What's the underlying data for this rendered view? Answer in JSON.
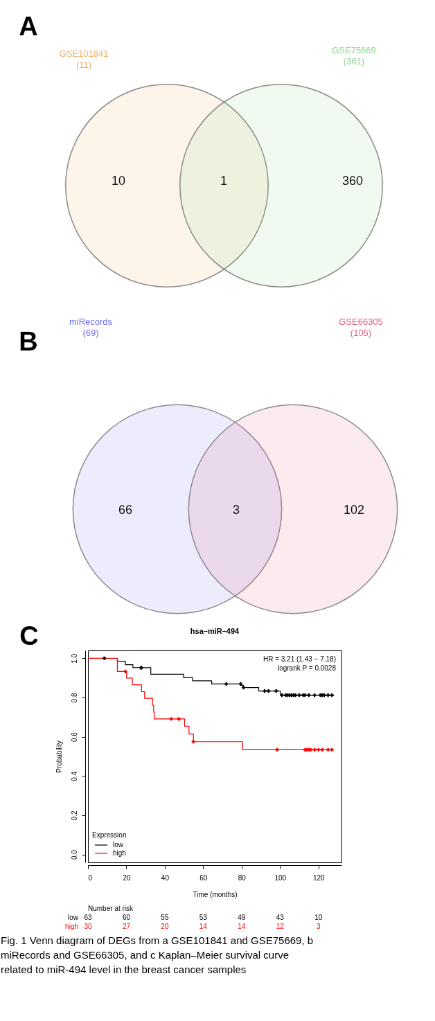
{
  "chart_data": [
    {
      "type": "other",
      "title": "A",
      "categories": [
        "GSE101841",
        "GSE75669"
      ],
      "colors": [
        "#f0b060",
        "#8ed88e"
      ],
      "annotations": [
        "(11)",
        "(361)",
        "10",
        "1",
        "360"
      ]
    },
    {
      "type": "other",
      "title": "B",
      "categories": [
        "miRecords",
        "GSE66305"
      ],
      "colors": [
        "#6f6ff0",
        "#e0607f"
      ],
      "annotations": [
        "(69)",
        "(105)",
        "66",
        "3",
        "102"
      ]
    },
    {
      "type": "line",
      "title": "hsa–miR–494",
      "xlabel": "Time (months)",
      "ylabel": "Probability",
      "legend_title": "Expression",
      "legend": "bottom left",
      "grid": false,
      "xlim": [
        0,
        132
      ],
      "xticks": [
        0,
        20,
        40,
        60,
        80,
        100,
        120
      ],
      "ylim": [
        -0.04,
        1.04
      ],
      "yticks": [
        {
          "value": 0,
          "label": "0.0"
        },
        {
          "value": 0.2,
          "label": "0.2"
        },
        {
          "value": 0.4,
          "label": "0.4"
        },
        {
          "value": 0.6,
          "label": "0.6"
        },
        {
          "value": 0.8,
          "label": "0.8"
        },
        {
          "value": 1,
          "label": "1.0"
        }
      ],
      "series": [
        {
          "name": "low",
          "color": "#000000",
          "x": [
            15.3,
            15.3,
            19.5,
            19.5,
            23.4,
            23.4,
            32.7,
            32.7,
            49.8,
            49.8,
            54.5,
            54.5,
            64.4,
            64.4,
            79.7,
            79.7,
            80.9,
            80.9,
            88.9,
            88.9,
            100.1,
            100.1,
            128.2
          ],
          "values": [
            1,
            0.985,
            0.985,
            0.967,
            0.967,
            0.952,
            0.952,
            0.919,
            0.919,
            0.901,
            0.901,
            0.885,
            0.885,
            0.869,
            0.869,
            0.862,
            0.862,
            0.851,
            0.851,
            0.833,
            0.833,
            0.812,
            0.812
          ]
        },
        {
          "name": "high",
          "color": "#ff0000",
          "x": [
            0,
            15.3,
            15.3,
            20.1,
            20.1,
            23.1,
            23.1,
            27.9,
            27.9,
            29.5,
            29.5,
            33.6,
            33.6,
            34.2,
            34.2,
            34.5,
            34.5,
            50.3,
            50.3,
            52.6,
            52.6,
            54.9,
            54.9,
            80.5,
            80.5,
            127.5
          ],
          "values": [
            1,
            1,
            0.933,
            0.933,
            0.899,
            0.899,
            0.865,
            0.865,
            0.83,
            0.83,
            0.796,
            0.796,
            0.761,
            0.761,
            0.725,
            0.725,
            0.691,
            0.691,
            0.654,
            0.654,
            0.614,
            0.614,
            0.575,
            0.575,
            0.534,
            0.534
          ]
        },
        {
          "type": "scatter",
          "marker": "cross",
          "color": "#000000",
          "x": [
            8.5,
            27.6,
            27.9,
            72,
            79.5,
            81,
            92,
            94,
            98,
            101,
            103,
            104,
            105,
            106,
            107,
            108,
            110,
            112,
            113,
            115,
            118,
            121,
            122,
            123,
            125,
            127
          ],
          "values": [
            1,
            0.952,
            0.952,
            0.869,
            0.869,
            0.851,
            0.833,
            0.833,
            0.833,
            0.812,
            0.812,
            0.812,
            0.812,
            0.812,
            0.812,
            0.812,
            0.812,
            0.812,
            0.812,
            0.812,
            0.812,
            0.812,
            0.812,
            0.812,
            0.812,
            0.812
          ]
        },
        {
          "type": "scatter",
          "marker": "cross",
          "color": "#ff0000",
          "x": [
            19.5,
            43.4,
            47.3,
            54.9,
            98.5,
            113,
            114,
            115,
            116,
            118,
            120,
            122,
            125,
            127
          ],
          "values": [
            0.933,
            0.691,
            0.691,
            0.575,
            0.534,
            0.534,
            0.534,
            0.534,
            0.534,
            0.534,
            0.534,
            0.534,
            0.534,
            0.534
          ]
        }
      ],
      "annotations": [
        "C",
        "HR = 3.21 (1.43 − 7.18)",
        "logrank P = 0.0028",
        "Number at risk",
        "low 63 60 55 53 49 43 10",
        "high 30 27 20 14 14 12 3",
        "Fig. 1 Venn diagram of DEGs from a GSE101841 and GSE75669, b miRecords and GSE66305, and c Kaplan–Meier survival curve related to miR-494 level in the breast cancer samples"
      ]
    }
  ]
}
